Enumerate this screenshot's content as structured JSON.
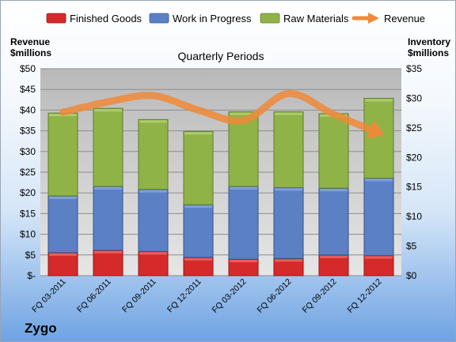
{
  "chart_data": {
    "type": "bar",
    "title": "Quarterly Periods",
    "company": "Zygo",
    "left_axis_label": [
      "Revenue",
      "$millions"
    ],
    "right_axis_label": [
      "Inventory",
      "$millions"
    ],
    "categories": [
      "FQ 03-2011",
      "FQ 06-2011",
      "FQ 09-2011",
      "FQ 12-2011",
      "FQ 03-2012",
      "FQ 06-2012",
      "FQ 09-2012",
      "FQ 12-2012"
    ],
    "left_ylim": [
      0,
      50
    ],
    "left_ticks": [
      "$-",
      "$5",
      "$10",
      "$15",
      "$20",
      "$25",
      "$30",
      "$35",
      "$40",
      "$45",
      "$50"
    ],
    "right_ylim": [
      0,
      35
    ],
    "right_ticks": [
      "$0",
      "$5",
      "$10",
      "$15",
      "$20",
      "$25",
      "$30",
      "$35"
    ],
    "stacked_series_axis": "right",
    "line_series_axis": "left",
    "series": [
      {
        "name": "Finished Goods",
        "kind": "bar",
        "color": "#d42a2a",
        "values": [
          3.9,
          4.3,
          4.1,
          3.1,
          2.8,
          2.9,
          3.5,
          3.4
        ]
      },
      {
        "name": "Work in Progress",
        "kind": "bar",
        "color": "#5b80c4",
        "values": [
          9.6,
          10.8,
          10.5,
          8.9,
          12.3,
          12.0,
          11.3,
          13.1
        ]
      },
      {
        "name": "Raw Materials",
        "kind": "bar",
        "color": "#8fb347",
        "values": [
          14.0,
          13.2,
          11.8,
          12.4,
          12.6,
          12.8,
          12.6,
          13.5
        ]
      },
      {
        "name": "Revenue",
        "kind": "line",
        "color": "#ee8a3a",
        "values": [
          39.5,
          42.0,
          43.5,
          40.0,
          37.5,
          44.0,
          39.0,
          34.5
        ]
      }
    ],
    "legend_position": "top",
    "grid": true
  }
}
